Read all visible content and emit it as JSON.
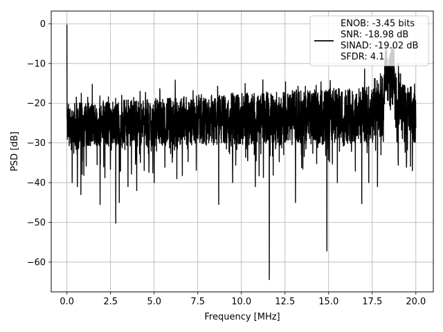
{
  "chart_data": {
    "type": "line",
    "title": "",
    "xlabel": "Frequency [MHz]",
    "ylabel": "PSD [dB]",
    "xlim": [
      -0.9,
      21.0
    ],
    "ylim": [
      -67.5,
      3.2
    ],
    "xticks": [
      0.0,
      2.5,
      5.0,
      7.5,
      10.0,
      12.5,
      15.0,
      17.5,
      20.0
    ],
    "xtick_labels": [
      "0.0",
      "2.5",
      "5.0",
      "7.5",
      "10.0",
      "12.5",
      "15.0",
      "17.5",
      "20.0"
    ],
    "yticks": [
      0,
      -10,
      -20,
      -30,
      -40,
      -50,
      -60
    ],
    "ytick_labels": [
      "0",
      "−10",
      "−20",
      "−30",
      "−40",
      "−50",
      "−60"
    ],
    "grid": true,
    "legend_position": "top-right",
    "series": [
      {
        "name": "ENOB: -3.45 bits\nSNR: -18.98 dB\nSINAD: -19.02 dB\nSFDR: 4.1",
        "legend_lines": [
          "ENOB: -3.45 bits",
          "SNR: -18.98 dB",
          "SINAD: -19.02 dB",
          "SFDR: 4.1"
        ],
        "color": "#000000",
        "description": "noise-like PSD trace, 0 to 20 MHz",
        "x_range": [
          0.0,
          20.0
        ],
        "start_value": -0.2,
        "typical_band": [
          -30,
          -14
        ],
        "key_points": [
          {
            "x": 0.0,
            "y": -0.2
          },
          {
            "x": 0.05,
            "y": -24
          },
          {
            "x": 0.3,
            "y": -40
          },
          {
            "x": 0.6,
            "y": -41
          },
          {
            "x": 0.8,
            "y": -43
          },
          {
            "x": 1.9,
            "y": -45.5
          },
          {
            "x": 2.8,
            "y": -50.2
          },
          {
            "x": 3.0,
            "y": -45
          },
          {
            "x": 3.5,
            "y": -41
          },
          {
            "x": 4.0,
            "y": -42
          },
          {
            "x": 5.0,
            "y": -40
          },
          {
            "x": 6.3,
            "y": -39
          },
          {
            "x": 8.7,
            "y": -45.5
          },
          {
            "x": 9.5,
            "y": -40
          },
          {
            "x": 10.8,
            "y": -41
          },
          {
            "x": 11.6,
            "y": -64.4
          },
          {
            "x": 13.1,
            "y": -45
          },
          {
            "x": 14.9,
            "y": -57.2
          },
          {
            "x": 15.5,
            "y": -40
          },
          {
            "x": 16.9,
            "y": -45.3
          },
          {
            "x": 17.3,
            "y": -40
          },
          {
            "x": 17.8,
            "y": -41
          },
          {
            "x": 18.0,
            "y": -33
          },
          {
            "x": 18.3,
            "y": -7
          },
          {
            "x": 18.6,
            "y": -6
          },
          {
            "x": 19.0,
            "y": -10
          },
          {
            "x": 19.8,
            "y": -37
          }
        ]
      }
    ]
  }
}
